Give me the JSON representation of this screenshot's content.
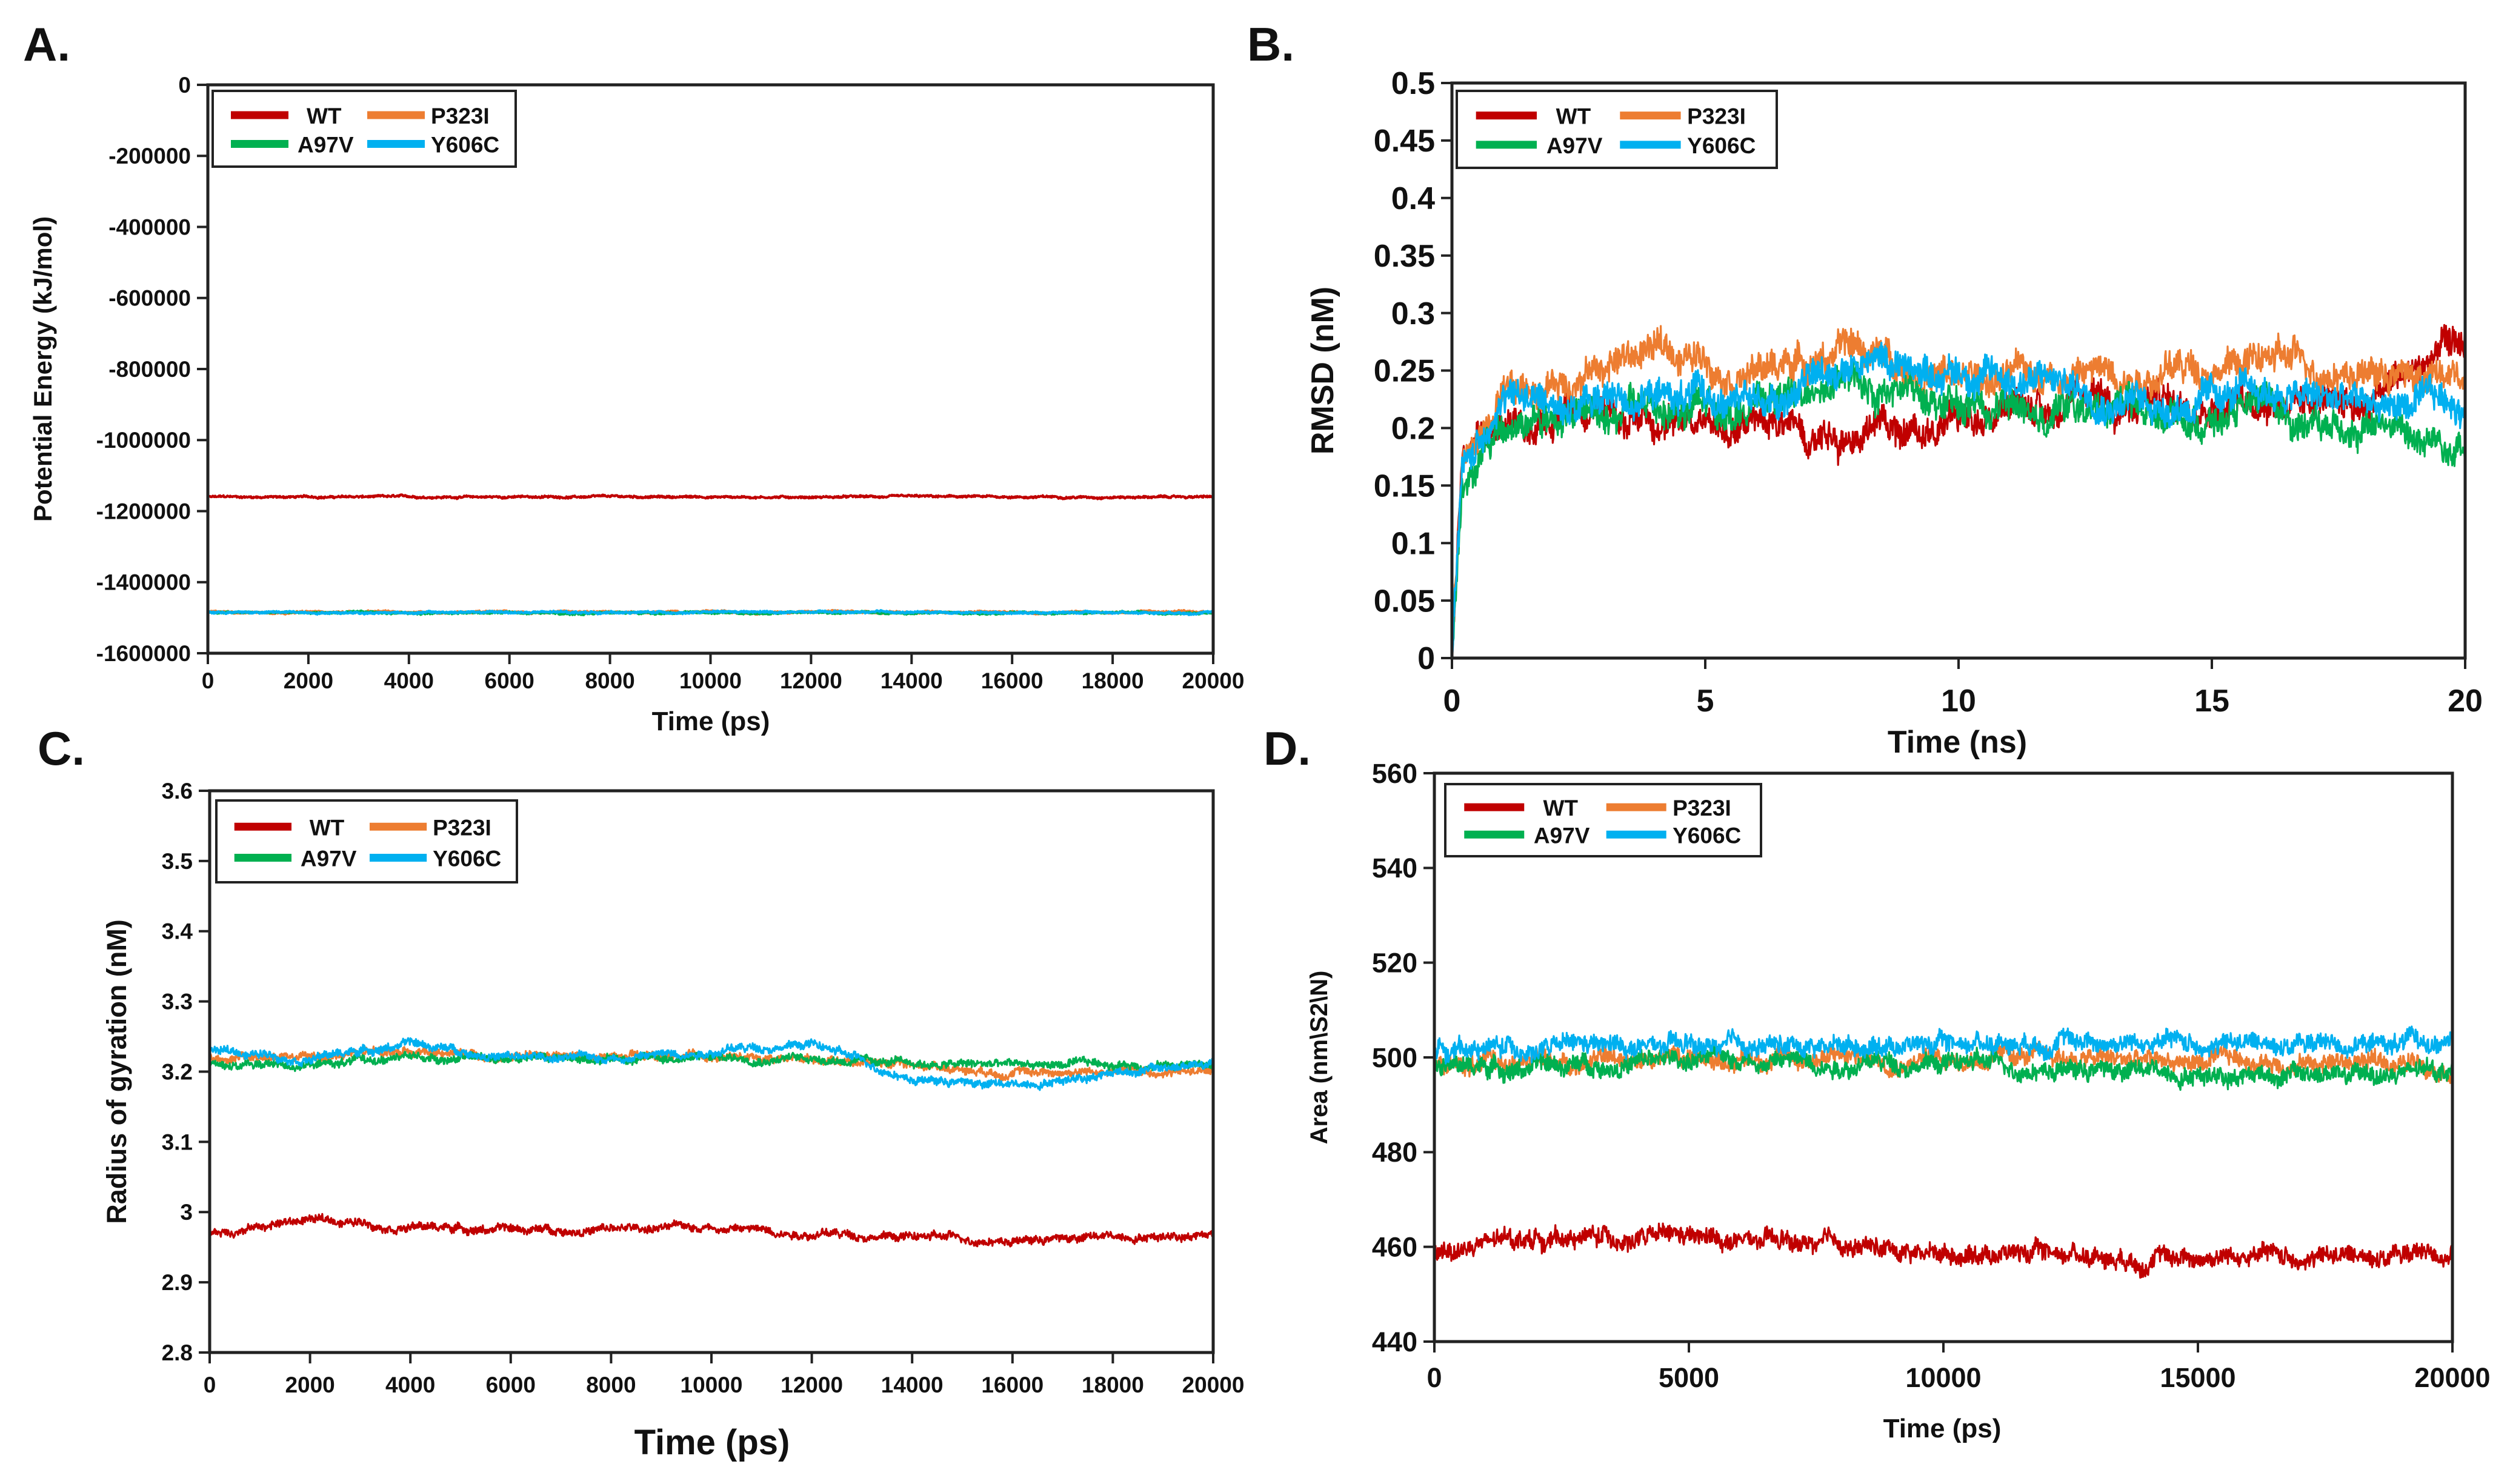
{
  "colors": {
    "WT": "#c00000",
    "P323I": "#ed7d31",
    "A97V": "#00b050",
    "Y606C": "#00b0f0"
  },
  "chart_data": [
    {
      "type": "line",
      "panel": "A.",
      "xlabel": "Time (ps)",
      "ylabel": "Potential Energy (kJ/mol)",
      "xlim": [
        0,
        20000
      ],
      "ylim": [
        -1600000,
        0
      ],
      "xticks": [
        "0",
        "2000",
        "4000",
        "6000",
        "8000",
        "10000",
        "12000",
        "14000",
        "16000",
        "18000",
        "20000"
      ],
      "yticks": [
        "-1600000",
        "-1400000",
        "-1200000",
        "-1000000",
        "-800000",
        "-600000",
        "-400000",
        "-200000",
        "0"
      ],
      "legend": "top-left",
      "noise": 3000,
      "x": [
        0,
        2000,
        4000,
        6000,
        8000,
        10000,
        12000,
        14000,
        16000,
        18000,
        20000
      ],
      "series": [
        {
          "name": "WT",
          "values": [
            -1160000,
            -1160000,
            -1160000,
            -1160000,
            -1160000,
            -1160000,
            -1160000,
            -1160000,
            -1160000,
            -1160000,
            -1160000
          ]
        },
        {
          "name": "P323I",
          "values": [
            -1484000,
            -1484000,
            -1484000,
            -1484000,
            -1484000,
            -1484000,
            -1484000,
            -1484000,
            -1484000,
            -1484000,
            -1484000
          ]
        },
        {
          "name": "A97V",
          "values": [
            -1486000,
            -1486000,
            -1486000,
            -1486000,
            -1486000,
            -1486000,
            -1486000,
            -1486000,
            -1486000,
            -1486000,
            -1486000
          ]
        },
        {
          "name": "Y606C",
          "values": [
            -1485000,
            -1485000,
            -1485000,
            -1485000,
            -1485000,
            -1485000,
            -1485000,
            -1485000,
            -1485000,
            -1485000,
            -1485000
          ]
        }
      ]
    },
    {
      "type": "line",
      "panel": "B.",
      "xlabel": "Time (ns)",
      "ylabel": "RMSD (nM)",
      "xlim": [
        0,
        20
      ],
      "ylim": [
        0,
        0.5
      ],
      "xticks": [
        "0",
        "5",
        "10",
        "15",
        "20"
      ],
      "yticks": [
        "0",
        "0.05",
        "0.1",
        "0.15",
        "0.2",
        "0.25",
        "0.3",
        "0.35",
        "0.4",
        "0.45",
        "0.5"
      ],
      "legend": "top-left",
      "noise": 0.014,
      "x": [
        0,
        0.2,
        1,
        2,
        4,
        6,
        8,
        10,
        12,
        14,
        16,
        18,
        20
      ],
      "series": [
        {
          "name": "WT",
          "values": [
            0,
            0.17,
            0.21,
            0.21,
            0.21,
            0.2,
            0.2,
            0.21,
            0.22,
            0.22,
            0.23,
            0.23,
            0.27
          ]
        },
        {
          "name": "P323I",
          "values": [
            0,
            0.17,
            0.22,
            0.24,
            0.27,
            0.25,
            0.27,
            0.24,
            0.25,
            0.25,
            0.26,
            0.25,
            0.24
          ]
        },
        {
          "name": "A97V",
          "values": [
            0,
            0.15,
            0.2,
            0.21,
            0.22,
            0.22,
            0.24,
            0.22,
            0.22,
            0.21,
            0.21,
            0.2,
            0.19
          ]
        },
        {
          "name": "Y606C",
          "values": [
            0,
            0.16,
            0.23,
            0.22,
            0.23,
            0.22,
            0.26,
            0.25,
            0.24,
            0.22,
            0.23,
            0.22,
            0.22
          ]
        }
      ]
    },
    {
      "type": "line",
      "panel": "C.",
      "xlabel": "Time (ps)",
      "ylabel": "Radius of gyration (nM)",
      "xlim": [
        0,
        20000
      ],
      "ylim": [
        2.8,
        3.6
      ],
      "xticks": [
        "0",
        "2000",
        "4000",
        "6000",
        "8000",
        "10000",
        "12000",
        "14000",
        "16000",
        "18000",
        "20000"
      ],
      "yticks": [
        "2.8",
        "2.9",
        "3",
        "3.1",
        "3.2",
        "3.3",
        "3.4",
        "3.5",
        "3.6"
      ],
      "legend": "top-left",
      "noise": 0.006,
      "x": [
        0,
        2000,
        4000,
        6000,
        8000,
        10000,
        12000,
        14000,
        16000,
        18000,
        20000
      ],
      "series": [
        {
          "name": "WT",
          "values": [
            2.97,
            2.99,
            2.98,
            2.975,
            2.975,
            2.98,
            2.97,
            2.965,
            2.96,
            2.965,
            2.97
          ]
        },
        {
          "name": "P323I",
          "values": [
            3.22,
            3.22,
            3.23,
            3.22,
            3.22,
            3.22,
            3.22,
            3.21,
            3.2,
            3.2,
            3.2
          ]
        },
        {
          "name": "A97V",
          "values": [
            3.21,
            3.21,
            3.22,
            3.22,
            3.22,
            3.22,
            3.22,
            3.21,
            3.21,
            3.21,
            3.21
          ]
        },
        {
          "name": "Y606C",
          "values": [
            3.23,
            3.22,
            3.24,
            3.22,
            3.22,
            3.23,
            3.24,
            3.19,
            3.18,
            3.2,
            3.21
          ]
        }
      ]
    },
    {
      "type": "line",
      "panel": "D.",
      "xlabel": "Time (ps)",
      "ylabel": "Area (nm\\S2\\N)",
      "xlim": [
        0,
        20000
      ],
      "ylim": [
        440,
        560
      ],
      "xticks": [
        "0",
        "5000",
        "10000",
        "15000",
        "20000"
      ],
      "yticks": [
        "440",
        "460",
        "480",
        "500",
        "520",
        "540",
        "560"
      ],
      "legend": "top-left",
      "noise": 2,
      "x": [
        0,
        2000,
        4000,
        6000,
        8000,
        10000,
        12000,
        14000,
        16000,
        18000,
        20000
      ],
      "series": [
        {
          "name": "WT",
          "values": [
            459,
            462,
            462,
            461,
            460,
            459,
            459,
            458,
            458,
            458,
            459
          ]
        },
        {
          "name": "P323I",
          "values": [
            498,
            499,
            500,
            500,
            500,
            500,
            500,
            499,
            499,
            499,
            499
          ]
        },
        {
          "name": "A97V",
          "values": [
            498,
            498,
            499,
            500,
            499,
            499,
            498,
            497,
            497,
            496,
            497
          ]
        },
        {
          "name": "Y606C",
          "values": [
            502,
            502,
            502,
            502,
            503,
            503,
            504,
            503,
            503,
            503,
            503
          ]
        }
      ]
    }
  ]
}
